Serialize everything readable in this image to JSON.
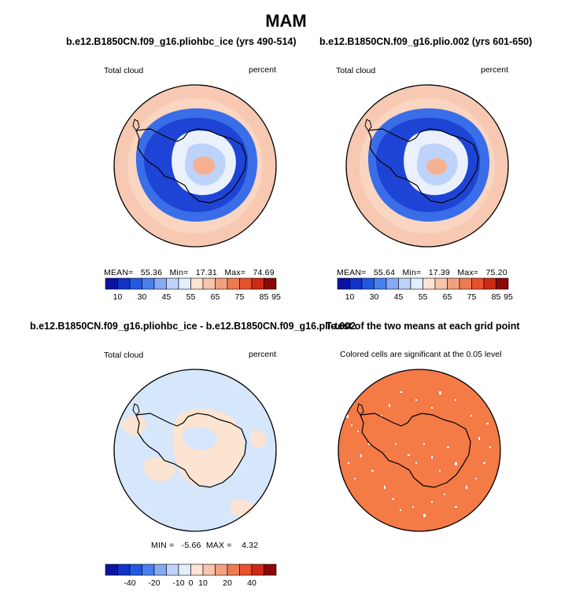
{
  "title": "MAM",
  "panels": [
    {
      "title": "b.e12.B1850CN.f09_g16.pliohbc_ice (yrs 490-514)",
      "left_label": "Total cloud",
      "right_label": "percent",
      "stats": {
        "mean_label": "MEAN=",
        "mean": "55.36",
        "min_label": "Min=",
        "min": "17.31",
        "max_label": "Max=",
        "max": "74.69"
      }
    },
    {
      "title": "b.e12.B1850CN.f09_g16.plio.002 (yrs 601-650)",
      "left_label": "Total cloud",
      "right_label": "percent",
      "stats": {
        "mean_label": "MEAN=",
        "mean": "55.64",
        "min_label": "Min=",
        "min": "17.39",
        "max_label": "Max=",
        "max": "75.20"
      }
    },
    {
      "title": "b.e12.B1850CN.f09_g16.pliohbc_ice - b.e12.B1850CN.f09_g16.plio.002",
      "left_label": "Total cloud",
      "right_label": "percent",
      "stats_text": "MIN =   -5.66  MAX =    4.32"
    },
    {
      "title": "T-test of the two means at each grid point",
      "subtitle": "Colored cells are significant at the 0.05 level"
    }
  ],
  "colorbar_abs": {
    "labels": [
      "10",
      "30",
      "45",
      "55",
      "65",
      "75",
      "85",
      "95"
    ],
    "colors": [
      "#0b14a0",
      "#1232c8",
      "#2159e0",
      "#4a80ee",
      "#86aaf4",
      "#bdd3fa",
      "#e3eefc",
      "#fce3d4",
      "#f7c4ac",
      "#f2a07f",
      "#ee7a52",
      "#e7512c",
      "#cd2a12",
      "#8c0707"
    ]
  },
  "colorbar_diff": {
    "labels": [
      "-40",
      "-20",
      "-10",
      "0",
      "10",
      "20",
      "40"
    ],
    "colors": [
      "#0b14a0",
      "#1232c8",
      "#2159e0",
      "#4a80ee",
      "#86aaf4",
      "#bdd3fa",
      "#e3eefc",
      "#fce3d4",
      "#f7c4ac",
      "#f2a07f",
      "#ee7a52",
      "#e7512c",
      "#cd2a12",
      "#8c0707"
    ]
  },
  "map_colors": {
    "ocean_mid": "#f7c9b2",
    "ocean_edge": "#f2b59a",
    "blue_dark": "#1d44d4",
    "blue_mid": "#3a6ee8",
    "blue_light": "#8fb3f5",
    "interior": "#eaf1fd",
    "peak": "#f5b293",
    "diff_base": "#d6e6fb",
    "diff_warm": "#fce4d2",
    "sig": "#f47a46"
  }
}
